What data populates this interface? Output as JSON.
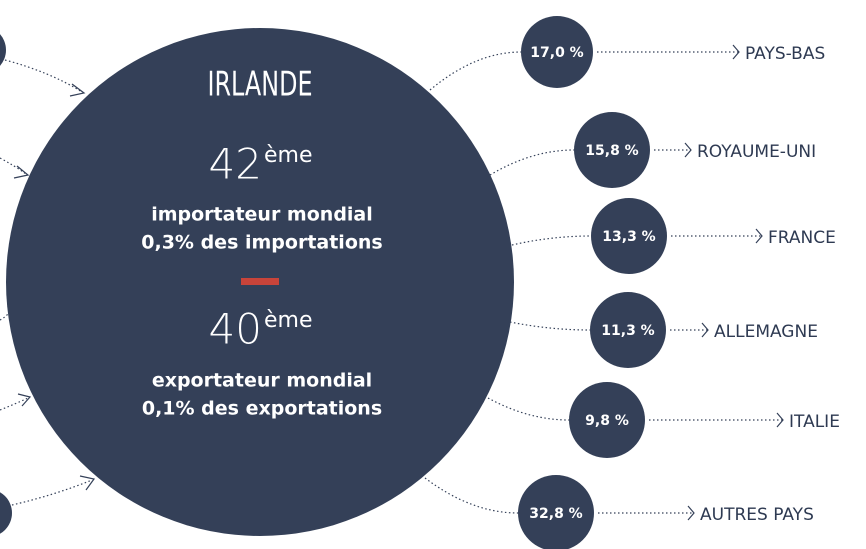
{
  "center": {
    "title": "IRLANDE",
    "import_rank": {
      "number": "42",
      "suffix": "ème"
    },
    "import_text": [
      "importateur mondial",
      "0,3% des importations"
    ],
    "export_rank": {
      "number": "40",
      "suffix": "ème"
    },
    "export_text": [
      "exportateur mondial",
      "0,1% des exportations"
    ]
  },
  "destinations": [
    {
      "share": "17,0 %",
      "label": "PAYS-BAS"
    },
    {
      "share": "15,8 %",
      "label": "ROYAUME-UNI"
    },
    {
      "share": "13,3 %",
      "label": "FRANCE"
    },
    {
      "share": "11,3 %",
      "label": "ALLEMAGNE"
    },
    {
      "share": "9,8 %",
      "label": "ITALIE"
    },
    {
      "share": "32,8 %",
      "label": "AUTRES PAYS"
    }
  ]
}
